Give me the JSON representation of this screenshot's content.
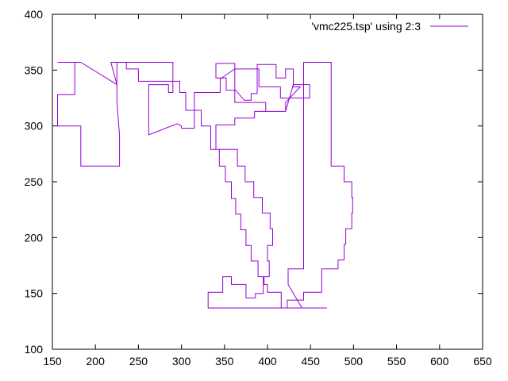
{
  "chart_data": {
    "type": "line",
    "xlim": [
      150,
      650
    ],
    "ylim": [
      100,
      400
    ],
    "x_ticks": [
      150,
      200,
      250,
      300,
      350,
      400,
      450,
      500,
      550,
      600,
      650
    ],
    "y_ticks": [
      100,
      150,
      200,
      250,
      300,
      350,
      400
    ],
    "grid": false,
    "legend_position": "top-right",
    "series": [
      {
        "name": "'vmc225.tsp' using 2:3",
        "color": "#9400d3",
        "points": [
          [
            156,
            357
          ],
          [
            183,
            357
          ],
          [
            225,
            337
          ],
          [
            218,
            357
          ],
          [
            290,
            357
          ],
          [
            290,
            330
          ],
          [
            285,
            330
          ],
          [
            285,
            337
          ],
          [
            262,
            337
          ],
          [
            262,
            292
          ],
          [
            295,
            302
          ],
          [
            300,
            300
          ],
          [
            300,
            298
          ],
          [
            315,
            298
          ],
          [
            315,
            330
          ],
          [
            345,
            330
          ],
          [
            345,
            342
          ],
          [
            362,
            351
          ],
          [
            362,
            321
          ],
          [
            398,
            321
          ],
          [
            398,
            313
          ],
          [
            421,
            313
          ],
          [
            421,
            321
          ],
          [
            438,
            335
          ],
          [
            430,
            335
          ],
          [
            430,
            351
          ],
          [
            421,
            351
          ],
          [
            421,
            343
          ],
          [
            410,
            343
          ],
          [
            410,
            355
          ],
          [
            388,
            355
          ],
          [
            388,
            329
          ],
          [
            381,
            329
          ],
          [
            381,
            323
          ],
          [
            373,
            323
          ],
          [
            363,
            332
          ],
          [
            352,
            332
          ],
          [
            352,
            343
          ],
          [
            340,
            343
          ],
          [
            340,
            356
          ],
          [
            362,
            356
          ],
          [
            362,
            351
          ],
          [
            390,
            351
          ],
          [
            390,
            335
          ],
          [
            415,
            335
          ],
          [
            415,
            325
          ],
          [
            449,
            325
          ],
          [
            449,
            337
          ],
          [
            430,
            337
          ],
          [
            421,
            313
          ],
          [
            385,
            313
          ],
          [
            385,
            307
          ],
          [
            362,
            307
          ],
          [
            362,
            301
          ],
          [
            340,
            301
          ],
          [
            340,
            279
          ],
          [
            365,
            279
          ],
          [
            365,
            264
          ],
          [
            374,
            264
          ],
          [
            374,
            250
          ],
          [
            384,
            250
          ],
          [
            384,
            236
          ],
          [
            394,
            236
          ],
          [
            394,
            222
          ],
          [
            403,
            222
          ],
          [
            403,
            208
          ],
          [
            406,
            208
          ],
          [
            406,
            193
          ],
          [
            400,
            193
          ],
          [
            400,
            179
          ],
          [
            402,
            179
          ],
          [
            402,
            165
          ],
          [
            395,
            165
          ],
          [
            395,
            150
          ],
          [
            386,
            150
          ],
          [
            386,
            146
          ],
          [
            375,
            146
          ],
          [
            375,
            158
          ],
          [
            358,
            158
          ],
          [
            358,
            165
          ],
          [
            348,
            165
          ],
          [
            348,
            151
          ],
          [
            331,
            151
          ],
          [
            331,
            137
          ],
          [
            469,
            137
          ],
          [
            440,
            137
          ],
          [
            424,
            158
          ],
          [
            424,
            172
          ],
          [
            442,
            172
          ],
          [
            442,
            357
          ],
          [
            474,
            357
          ],
          [
            474,
            264
          ],
          [
            489,
            264
          ],
          [
            489,
            250
          ],
          [
            498,
            250
          ],
          [
            498,
            236
          ],
          [
            499,
            236
          ],
          [
            499,
            222
          ],
          [
            498,
            222
          ],
          [
            498,
            208
          ],
          [
            491,
            208
          ],
          [
            491,
            194
          ],
          [
            489,
            194
          ],
          [
            489,
            180
          ],
          [
            482,
            180
          ],
          [
            482,
            172
          ],
          [
            463,
            172
          ],
          [
            463,
            151
          ],
          [
            442,
            151
          ],
          [
            442,
            144
          ],
          [
            423,
            144
          ],
          [
            423,
            137
          ],
          [
            416,
            137
          ],
          [
            416,
            151
          ],
          [
            400,
            151
          ],
          [
            400,
            158
          ],
          [
            396,
            158
          ],
          [
            396,
            165
          ],
          [
            389,
            165
          ],
          [
            389,
            179
          ],
          [
            381,
            179
          ],
          [
            381,
            193
          ],
          [
            375,
            193
          ],
          [
            375,
            207
          ],
          [
            369,
            207
          ],
          [
            369,
            221
          ],
          [
            363,
            221
          ],
          [
            363,
            235
          ],
          [
            358,
            235
          ],
          [
            358,
            250
          ],
          [
            351,
            250
          ],
          [
            351,
            264
          ],
          [
            344,
            264
          ],
          [
            344,
            279
          ],
          [
            334,
            279
          ],
          [
            334,
            300
          ],
          [
            323,
            300
          ],
          [
            323,
            314
          ],
          [
            305,
            314
          ],
          [
            305,
            330
          ],
          [
            298,
            330
          ],
          [
            298,
            340
          ],
          [
            250,
            340
          ],
          [
            250,
            351
          ],
          [
            236,
            351
          ],
          [
            236,
            357
          ],
          [
            225,
            357
          ],
          [
            225,
            321
          ],
          [
            228,
            292
          ],
          [
            228,
            264
          ],
          [
            183,
            264
          ],
          [
            183,
            300
          ],
          [
            156,
            300
          ],
          [
            156,
            328
          ],
          [
            176,
            328
          ],
          [
            176,
            357
          ]
        ]
      }
    ]
  }
}
